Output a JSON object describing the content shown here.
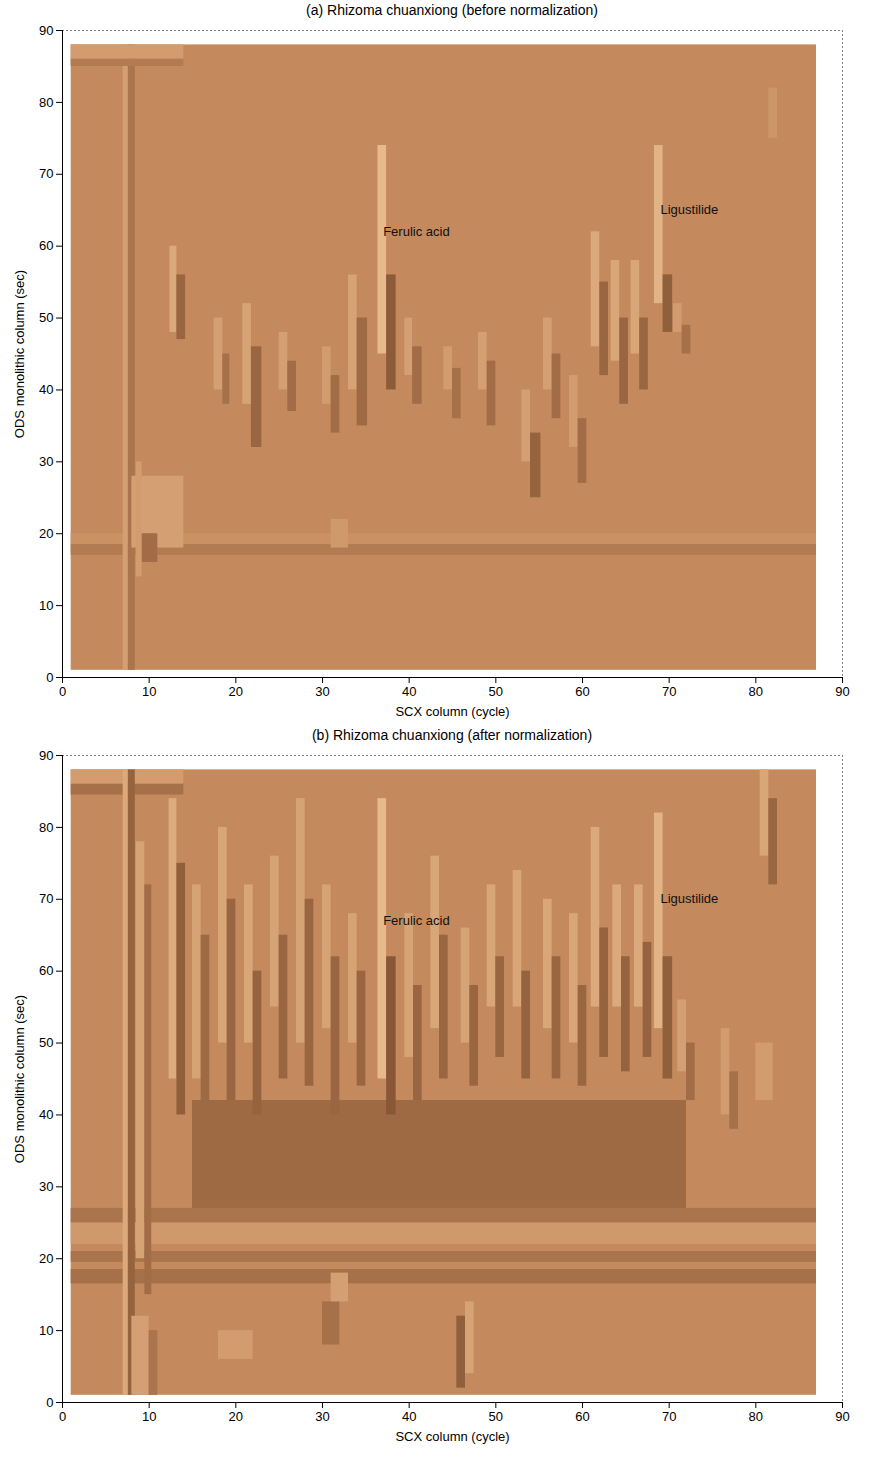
{
  "chart_data": [
    {
      "type": "heatmap",
      "title": "(a) Rhizoma chuanxiong (before normalization)",
      "x_label": "SCX column (cycle)",
      "y_label": "ODS monolithic column (sec)",
      "xlim": [
        0,
        90
      ],
      "ylim": [
        0,
        90
      ],
      "xticks": [
        0,
        10,
        20,
        30,
        40,
        50,
        60,
        70,
        80,
        90
      ],
      "yticks": [
        0,
        10,
        20,
        30,
        40,
        50,
        60,
        70,
        80,
        90
      ],
      "grid": false,
      "image_extent": {
        "x": [
          1,
          87
        ],
        "y": [
          1,
          88
        ]
      },
      "annotations": [
        {
          "text": "Ferulic acid",
          "x": 37,
          "y": 62
        },
        {
          "text": "Ligustilide",
          "x": 69,
          "y": 65
        }
      ],
      "cells": [
        {
          "x1": 1,
          "x2": 87,
          "y1": 17,
          "y2": 18.5,
          "value": -0.2
        },
        {
          "x1": 1,
          "x2": 87,
          "y1": 18.5,
          "y2": 20,
          "value": 0.12
        },
        {
          "x1": 7,
          "x2": 7.6,
          "y1": 1,
          "y2": 88,
          "value": 0.35
        },
        {
          "x1": 7.6,
          "x2": 8.4,
          "y1": 1,
          "y2": 88,
          "value": -0.3
        },
        {
          "x1": 1,
          "x2": 14,
          "y1": 86,
          "y2": 88,
          "value": 0.3
        },
        {
          "x1": 1,
          "x2": 14,
          "y1": 85,
          "y2": 86,
          "value": -0.2
        },
        {
          "x1": 8,
          "x2": 14,
          "y1": 18,
          "y2": 28,
          "value": 0.35
        },
        {
          "x1": 9,
          "x2": 11,
          "y1": 16,
          "y2": 20,
          "value": -0.4
        },
        {
          "x1": 8.5,
          "x2": 9.2,
          "y1": 14,
          "y2": 30,
          "value": 0.3
        },
        {
          "x1": 31,
          "x2": 33,
          "y1": 18,
          "y2": 22,
          "value": 0.25
        },
        {
          "x1": 12.4,
          "x2": 13.2,
          "y1": 48,
          "y2": 60,
          "value": 0.5
        },
        {
          "x1": 13.2,
          "x2": 14.2,
          "y1": 47,
          "y2": 56,
          "value": -0.5
        },
        {
          "x1": 17.5,
          "x2": 18.5,
          "y1": 40,
          "y2": 50,
          "value": 0.35
        },
        {
          "x1": 18.5,
          "x2": 19.3,
          "y1": 38,
          "y2": 45,
          "value": -0.35
        },
        {
          "x1": 20.8,
          "x2": 21.8,
          "y1": 38,
          "y2": 52,
          "value": 0.4
        },
        {
          "x1": 21.8,
          "x2": 23,
          "y1": 32,
          "y2": 46,
          "value": -0.5
        },
        {
          "x1": 25,
          "x2": 26,
          "y1": 40,
          "y2": 48,
          "value": 0.35
        },
        {
          "x1": 26,
          "x2": 27,
          "y1": 37,
          "y2": 44,
          "value": -0.4
        },
        {
          "x1": 30,
          "x2": 31,
          "y1": 38,
          "y2": 46,
          "value": 0.3
        },
        {
          "x1": 31,
          "x2": 32,
          "y1": 34,
          "y2": 42,
          "value": -0.4
        },
        {
          "x1": 33,
          "x2": 34,
          "y1": 40,
          "y2": 56,
          "value": 0.4
        },
        {
          "x1": 34,
          "x2": 35.2,
          "y1": 35,
          "y2": 50,
          "value": -0.45
        },
        {
          "x1": 36.4,
          "x2": 37.4,
          "y1": 45,
          "y2": 74,
          "value": 0.75
        },
        {
          "x1": 37.4,
          "x2": 38.5,
          "y1": 40,
          "y2": 56,
          "value": -0.65
        },
        {
          "x1": 39.5,
          "x2": 40.4,
          "y1": 42,
          "y2": 50,
          "value": 0.35
        },
        {
          "x1": 40.4,
          "x2": 41.5,
          "y1": 38,
          "y2": 46,
          "value": -0.4
        },
        {
          "x1": 44,
          "x2": 45,
          "y1": 40,
          "y2": 46,
          "value": 0.3
        },
        {
          "x1": 45,
          "x2": 46,
          "y1": 36,
          "y2": 43,
          "value": -0.35
        },
        {
          "x1": 48,
          "x2": 49,
          "y1": 40,
          "y2": 48,
          "value": 0.35
        },
        {
          "x1": 49,
          "x2": 50,
          "y1": 35,
          "y2": 44,
          "value": -0.4
        },
        {
          "x1": 53,
          "x2": 54,
          "y1": 30,
          "y2": 40,
          "value": 0.35
        },
        {
          "x1": 54,
          "x2": 55.2,
          "y1": 25,
          "y2": 34,
          "value": -0.55
        },
        {
          "x1": 55.5,
          "x2": 56.5,
          "y1": 40,
          "y2": 50,
          "value": 0.35
        },
        {
          "x1": 56.5,
          "x2": 57.5,
          "y1": 36,
          "y2": 45,
          "value": -0.4
        },
        {
          "x1": 58.5,
          "x2": 59.5,
          "y1": 32,
          "y2": 42,
          "value": 0.3
        },
        {
          "x1": 59.5,
          "x2": 60.5,
          "y1": 27,
          "y2": 36,
          "value": -0.4
        },
        {
          "x1": 61,
          "x2": 62,
          "y1": 46,
          "y2": 62,
          "value": 0.5
        },
        {
          "x1": 62,
          "x2": 63,
          "y1": 42,
          "y2": 55,
          "value": -0.5
        },
        {
          "x1": 63.3,
          "x2": 64.3,
          "y1": 44,
          "y2": 58,
          "value": 0.45
        },
        {
          "x1": 64.3,
          "x2": 65.3,
          "y1": 38,
          "y2": 50,
          "value": -0.5
        },
        {
          "x1": 65.6,
          "x2": 66.6,
          "y1": 45,
          "y2": 58,
          "value": 0.45
        },
        {
          "x1": 66.6,
          "x2": 67.6,
          "y1": 40,
          "y2": 50,
          "value": -0.5
        },
        {
          "x1": 68.3,
          "x2": 69.3,
          "y1": 52,
          "y2": 74,
          "value": 0.65
        },
        {
          "x1": 69.3,
          "x2": 70.4,
          "y1": 48,
          "y2": 56,
          "value": -0.6
        },
        {
          "x1": 70.5,
          "x2": 71.5,
          "y1": 48,
          "y2": 52,
          "value": 0.3
        },
        {
          "x1": 71.5,
          "x2": 72.5,
          "y1": 45,
          "y2": 49,
          "value": -0.35
        },
        {
          "x1": 81.5,
          "x2": 82.5,
          "y1": 75,
          "y2": 82,
          "value": 0.2
        }
      ]
    },
    {
      "type": "heatmap",
      "title": "(b) Rhizoma chuanxiong (after normalization)",
      "x_label": "SCX column (cycle)",
      "y_label": "ODS monolithic column (sec)",
      "xlim": [
        0,
        90
      ],
      "ylim": [
        0,
        90
      ],
      "xticks": [
        0,
        10,
        20,
        30,
        40,
        50,
        60,
        70,
        80,
        90
      ],
      "yticks": [
        0,
        10,
        20,
        30,
        40,
        50,
        60,
        70,
        80,
        90
      ],
      "grid": false,
      "image_extent": {
        "x": [
          1,
          87
        ],
        "y": [
          1,
          88
        ]
      },
      "annotations": [
        {
          "text": "Ferulic acid",
          "x": 37,
          "y": 67
        },
        {
          "text": "Ligustilide",
          "x": 69,
          "y": 70
        }
      ],
      "cells": [
        {
          "x1": 15,
          "x2": 72,
          "y1": 26,
          "y2": 42,
          "value": -0.45
        },
        {
          "x1": 1,
          "x2": 87,
          "y1": 22,
          "y2": 25,
          "value": 0.25
        },
        {
          "x1": 1,
          "x2": 87,
          "y1": 16.5,
          "y2": 18.5,
          "value": -0.35
        },
        {
          "x1": 1,
          "x2": 87,
          "y1": 19.5,
          "y2": 21,
          "value": -0.3
        },
        {
          "x1": 1,
          "x2": 87,
          "y1": 25,
          "y2": 27,
          "value": -0.3
        },
        {
          "x1": 1,
          "x2": 14,
          "y1": 86,
          "y2": 88,
          "value": 0.3
        },
        {
          "x1": 1,
          "x2": 14,
          "y1": 84.5,
          "y2": 86,
          "value": -0.35
        },
        {
          "x1": 7,
          "x2": 7.6,
          "y1": 1,
          "y2": 88,
          "value": 0.5
        },
        {
          "x1": 7.6,
          "x2": 8.4,
          "y1": 1,
          "y2": 88,
          "value": -0.55
        },
        {
          "x1": 8.5,
          "x2": 9.5,
          "y1": 20,
          "y2": 78,
          "value": 0.4
        },
        {
          "x1": 9.5,
          "x2": 10.3,
          "y1": 15,
          "y2": 72,
          "value": -0.4
        },
        {
          "x1": 12.3,
          "x2": 13.2,
          "y1": 45,
          "y2": 84,
          "value": 0.55
        },
        {
          "x1": 13.2,
          "x2": 14.2,
          "y1": 40,
          "y2": 75,
          "value": -0.6
        },
        {
          "x1": 15,
          "x2": 16,
          "y1": 45,
          "y2": 72,
          "value": 0.4
        },
        {
          "x1": 16,
          "x2": 17,
          "y1": 40,
          "y2": 65,
          "value": -0.45
        },
        {
          "x1": 18,
          "x2": 19,
          "y1": 50,
          "y2": 80,
          "value": 0.45
        },
        {
          "x1": 19,
          "x2": 20,
          "y1": 42,
          "y2": 70,
          "value": -0.5
        },
        {
          "x1": 21,
          "x2": 22,
          "y1": 50,
          "y2": 72,
          "value": 0.45
        },
        {
          "x1": 22,
          "x2": 23,
          "y1": 40,
          "y2": 60,
          "value": -0.55
        },
        {
          "x1": 24,
          "x2": 25,
          "y1": 55,
          "y2": 76,
          "value": 0.4
        },
        {
          "x1": 25,
          "x2": 26,
          "y1": 45,
          "y2": 65,
          "value": -0.5
        },
        {
          "x1": 27,
          "x2": 28,
          "y1": 50,
          "y2": 84,
          "value": 0.4
        },
        {
          "x1": 28,
          "x2": 29,
          "y1": 44,
          "y2": 70,
          "value": -0.5
        },
        {
          "x1": 30,
          "x2": 31,
          "y1": 52,
          "y2": 72,
          "value": 0.4
        },
        {
          "x1": 31,
          "x2": 32,
          "y1": 40,
          "y2": 62,
          "value": -0.5
        },
        {
          "x1": 33,
          "x2": 34,
          "y1": 50,
          "y2": 68,
          "value": 0.4
        },
        {
          "x1": 34,
          "x2": 35,
          "y1": 44,
          "y2": 60,
          "value": -0.5
        },
        {
          "x1": 36.4,
          "x2": 37.4,
          "y1": 45,
          "y2": 84,
          "value": 0.75
        },
        {
          "x1": 37.4,
          "x2": 38.5,
          "y1": 40,
          "y2": 62,
          "value": -0.7
        },
        {
          "x1": 39.5,
          "x2": 40.5,
          "y1": 48,
          "y2": 68,
          "value": 0.4
        },
        {
          "x1": 40.5,
          "x2": 41.5,
          "y1": 42,
          "y2": 58,
          "value": -0.5
        },
        {
          "x1": 42.5,
          "x2": 43.5,
          "y1": 52,
          "y2": 76,
          "value": 0.45
        },
        {
          "x1": 43.5,
          "x2": 44.5,
          "y1": 45,
          "y2": 65,
          "value": -0.5
        },
        {
          "x1": 46,
          "x2": 47,
          "y1": 50,
          "y2": 66,
          "value": 0.4
        },
        {
          "x1": 47,
          "x2": 48,
          "y1": 44,
          "y2": 58,
          "value": -0.5
        },
        {
          "x1": 49,
          "x2": 50,
          "y1": 55,
          "y2": 72,
          "value": 0.45
        },
        {
          "x1": 50,
          "x2": 51,
          "y1": 48,
          "y2": 62,
          "value": -0.5
        },
        {
          "x1": 52,
          "x2": 53,
          "y1": 55,
          "y2": 74,
          "value": 0.45
        },
        {
          "x1": 53,
          "x2": 54,
          "y1": 45,
          "y2": 60,
          "value": -0.55
        },
        {
          "x1": 55.5,
          "x2": 56.5,
          "y1": 52,
          "y2": 70,
          "value": 0.45
        },
        {
          "x1": 56.5,
          "x2": 57.5,
          "y1": 45,
          "y2": 62,
          "value": -0.5
        },
        {
          "x1": 58.5,
          "x2": 59.5,
          "y1": 50,
          "y2": 68,
          "value": 0.45
        },
        {
          "x1": 59.5,
          "x2": 60.5,
          "y1": 44,
          "y2": 58,
          "value": -0.5
        },
        {
          "x1": 61,
          "x2": 62,
          "y1": 55,
          "y2": 80,
          "value": 0.5
        },
        {
          "x1": 62,
          "x2": 63,
          "y1": 48,
          "y2": 66,
          "value": -0.55
        },
        {
          "x1": 63.5,
          "x2": 64.5,
          "y1": 55,
          "y2": 72,
          "value": 0.5
        },
        {
          "x1": 64.5,
          "x2": 65.5,
          "y1": 46,
          "y2": 62,
          "value": -0.55
        },
        {
          "x1": 66,
          "x2": 67,
          "y1": 55,
          "y2": 72,
          "value": 0.5
        },
        {
          "x1": 67,
          "x2": 68,
          "y1": 48,
          "y2": 64,
          "value": -0.55
        },
        {
          "x1": 68.3,
          "x2": 69.3,
          "y1": 52,
          "y2": 82,
          "value": 0.65
        },
        {
          "x1": 69.3,
          "x2": 70.4,
          "y1": 45,
          "y2": 62,
          "value": -0.6
        },
        {
          "x1": 71,
          "x2": 72,
          "y1": 46,
          "y2": 56,
          "value": 0.35
        },
        {
          "x1": 72,
          "x2": 73,
          "y1": 42,
          "y2": 50,
          "value": -0.4
        },
        {
          "x1": 76,
          "x2": 77,
          "y1": 40,
          "y2": 52,
          "value": 0.3
        },
        {
          "x1": 77,
          "x2": 78,
          "y1": 38,
          "y2": 46,
          "value": -0.35
        },
        {
          "x1": 80.5,
          "x2": 81.5,
          "y1": 76,
          "y2": 88,
          "value": 0.45
        },
        {
          "x1": 81.5,
          "x2": 82.5,
          "y1": 72,
          "y2": 84,
          "value": -0.5
        },
        {
          "x1": 80,
          "x2": 82,
          "y1": 42,
          "y2": 50,
          "value": 0.3
        },
        {
          "x1": 45.5,
          "x2": 46.5,
          "y1": 2,
          "y2": 12,
          "value": -0.6
        },
        {
          "x1": 46.5,
          "x2": 47.5,
          "y1": 4,
          "y2": 14,
          "value": 0.4
        },
        {
          "x1": 30,
          "x2": 32,
          "y1": 8,
          "y2": 14,
          "value": -0.35
        },
        {
          "x1": 31,
          "x2": 33,
          "y1": 14,
          "y2": 18,
          "value": 0.35
        },
        {
          "x1": 18,
          "x2": 22,
          "y1": 6,
          "y2": 10,
          "value": 0.3
        },
        {
          "x1": 8,
          "x2": 10,
          "y1": 1,
          "y2": 12,
          "value": 0.35
        },
        {
          "x1": 10,
          "x2": 11,
          "y1": 1,
          "y2": 10,
          "value": -0.3
        }
      ]
    }
  ]
}
